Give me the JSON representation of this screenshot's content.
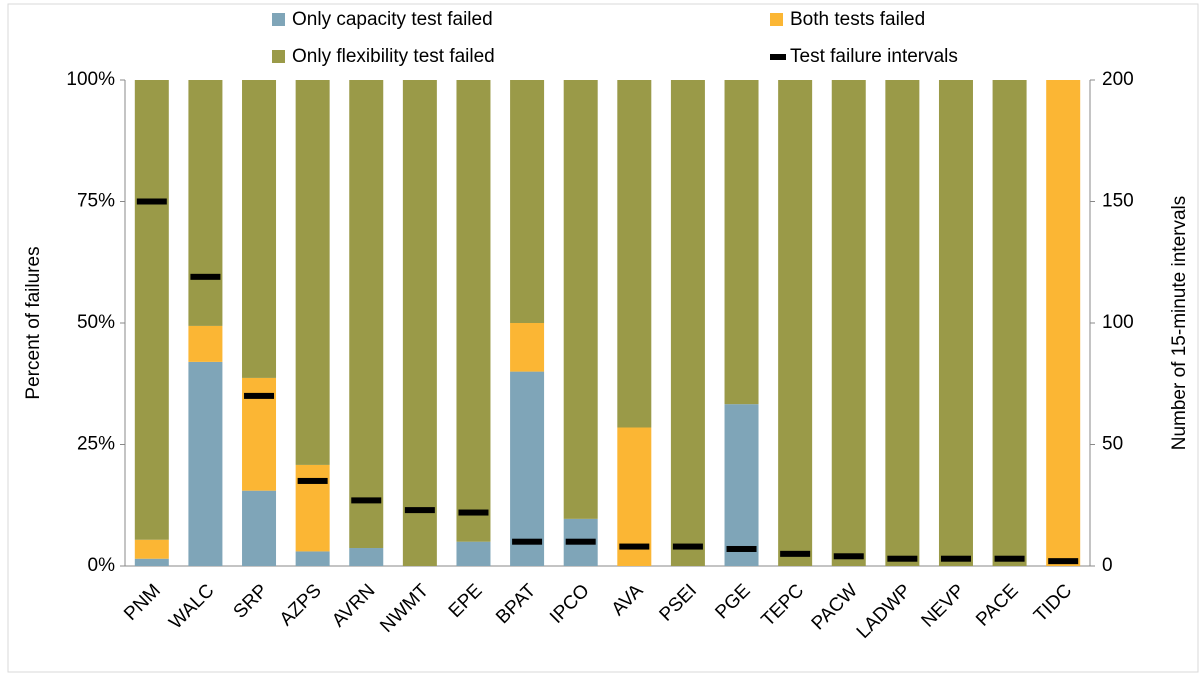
{
  "chart_data": {
    "type": "bar",
    "stacked": true,
    "categories": [
      "PNM",
      "WALC",
      "SRP",
      "AZPS",
      "AVRN",
      "NWMT",
      "EPE",
      "BPAT",
      "IPCO",
      "AVA",
      "PSEI",
      "PGE",
      "TEPC",
      "PACW",
      "LADWP",
      "NEVP",
      "PACE",
      "TIDC"
    ],
    "y_label": "Percent of failures",
    "y2_label": "Number of 15-minute intervals",
    "ylim": [
      0,
      100
    ],
    "yticks": [
      {
        "value": 0,
        "label": "0%"
      },
      {
        "value": 25,
        "label": "25%"
      },
      {
        "value": 50,
        "label": "50%"
      },
      {
        "value": 75,
        "label": "75%"
      },
      {
        "value": 100,
        "label": "100%"
      }
    ],
    "y2lim": [
      0,
      200
    ],
    "y2ticks": [
      0,
      50,
      100,
      150,
      200
    ],
    "grid": false,
    "legend": "top",
    "series": [
      {
        "name": "Only capacity test failed",
        "color": "#7fa5b8",
        "values": [
          1.5,
          42,
          15.5,
          3,
          3.7,
          0,
          5,
          40,
          9.7,
          0,
          0,
          33.3,
          0,
          0,
          0,
          0,
          0,
          0
        ]
      },
      {
        "name": "Both tests failed",
        "color": "#fbb634",
        "values": [
          3.9,
          7.4,
          23.2,
          17.8,
          0,
          0,
          0,
          10,
          0,
          28.5,
          0,
          0,
          0,
          0,
          0,
          0,
          0,
          100
        ]
      },
      {
        "name": "Only flexibility test failed",
        "color": "#9a9a48",
        "values": [
          94.6,
          50.6,
          61.3,
          79.2,
          96.3,
          100,
          95,
          50,
          90.3,
          71.5,
          100,
          66.7,
          100,
          100,
          100,
          100,
          100,
          0
        ]
      },
      {
        "name": "Test failure intervals",
        "color": "#000000",
        "axis": "y2",
        "type": "marker",
        "values": [
          150,
          119,
          70,
          35,
          27,
          23,
          22,
          10,
          10,
          8,
          8,
          7,
          5,
          4,
          3,
          3,
          3,
          2
        ]
      }
    ]
  }
}
